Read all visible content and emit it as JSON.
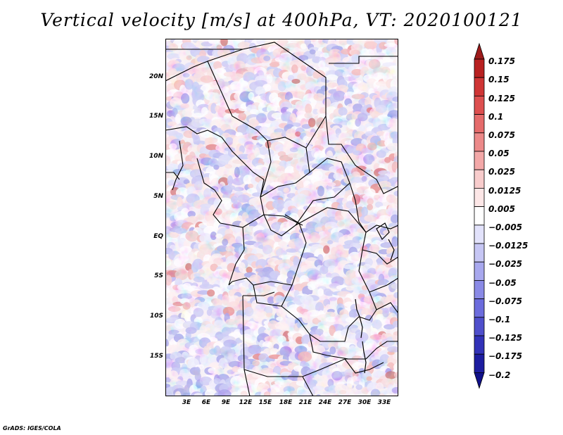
{
  "title": "Vertical velocity [m/s] at 400hPa, VT: 2020100121",
  "credit": "GrADS: IGES/COLA",
  "map": {
    "latitude_labels": [
      "20N",
      "15N",
      "10N",
      "5N",
      "EQ",
      "5S",
      "10S",
      "15S"
    ],
    "longitude_labels": [
      "3E",
      "6E",
      "9E",
      "12E",
      "15E",
      "18E",
      "21E",
      "24E",
      "27E",
      "30E",
      "33E"
    ],
    "lat_range": [
      -20,
      25
    ],
    "lon_range": [
      0,
      35
    ],
    "field": "vertical velocity",
    "units": "m/s",
    "level": "400hPa"
  },
  "colorbar": {
    "levels": [
      "0.175",
      "0.15",
      "0.125",
      "0.1",
      "0.075",
      "0.05",
      "0.025",
      "0.0125",
      "0.005",
      "−0.005",
      "−0.0125",
      "−0.025",
      "−0.05",
      "−0.075",
      "−0.1",
      "−0.125",
      "−0.175",
      "−0.2"
    ],
    "colors": [
      "#9e1b1b",
      "#b82121",
      "#cf3535",
      "#dd4f4f",
      "#e56b6b",
      "#ec8989",
      "#f3a8a8",
      "#f8cccc",
      "#fde7e7",
      "#ffffff",
      "#e2e2fb",
      "#c6c6f4",
      "#a8a8ee",
      "#8a8ae6",
      "#6c6cdd",
      "#4f4fcc",
      "#3232b8",
      "#1d1da0",
      "#10108a"
    ]
  }
}
